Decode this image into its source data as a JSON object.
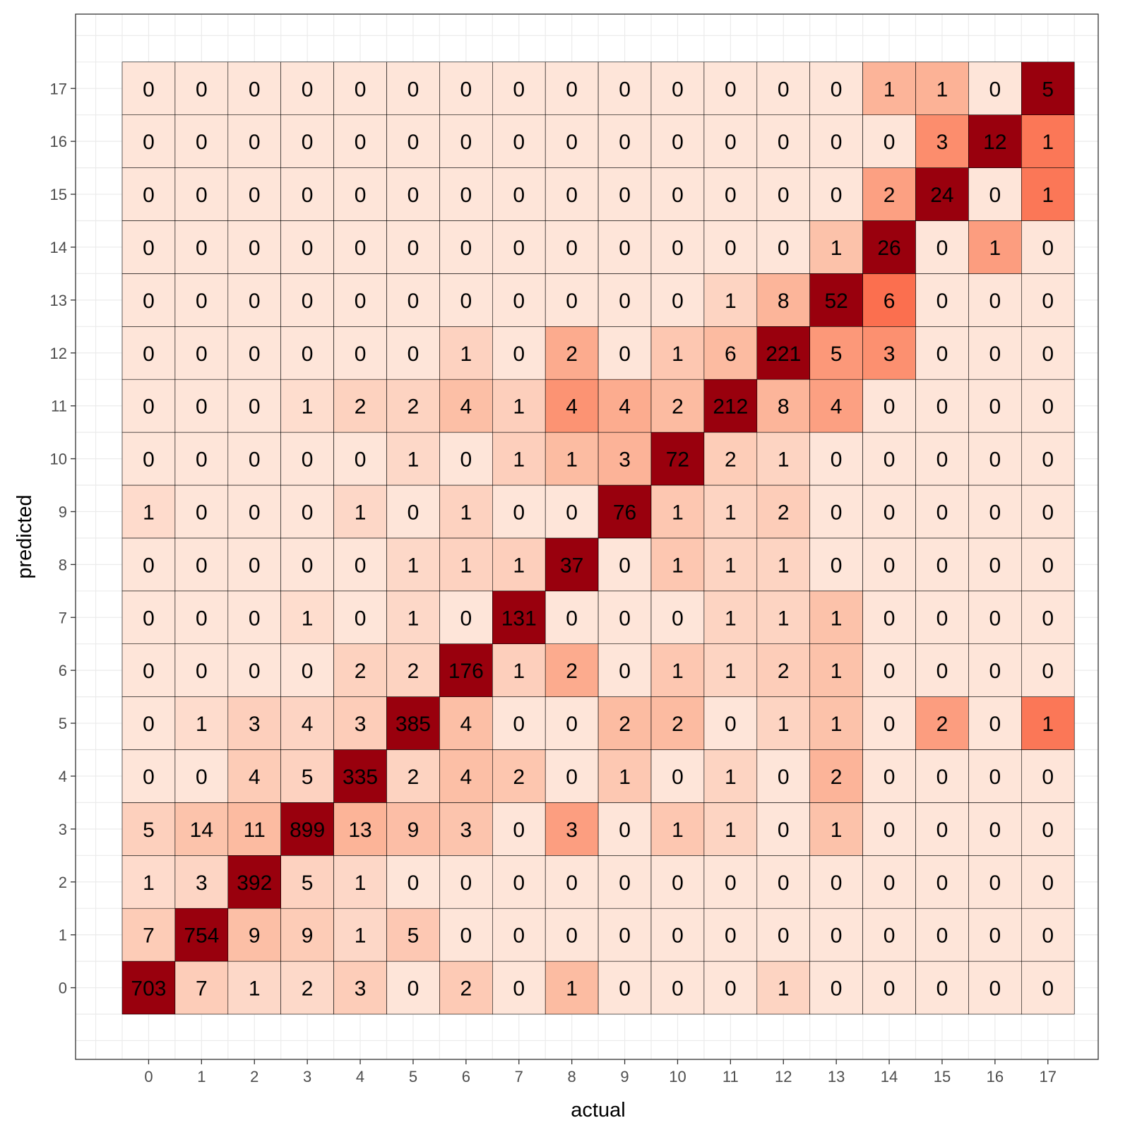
{
  "chart_data": {
    "type": "heatmap",
    "xlabel": "actual",
    "ylabel": "predicted",
    "x_categories": [
      "0",
      "1",
      "2",
      "3",
      "4",
      "5",
      "6",
      "7",
      "8",
      "9",
      "10",
      "11",
      "12",
      "13",
      "14",
      "15",
      "16",
      "17"
    ],
    "y_categories": [
      "0",
      "1",
      "2",
      "3",
      "4",
      "5",
      "6",
      "7",
      "8",
      "9",
      "10",
      "11",
      "12",
      "13",
      "14",
      "15",
      "16",
      "17"
    ],
    "rows_note": "values[i] is the row for predicted = y_categories[i]; values[i][j] is actual = x_categories[j]",
    "values": [
      [
        703,
        7,
        1,
        2,
        3,
        0,
        2,
        0,
        1,
        0,
        0,
        0,
        1,
        0,
        0,
        0,
        0,
        0
      ],
      [
        7,
        754,
        9,
        9,
        1,
        5,
        0,
        0,
        0,
        0,
        0,
        0,
        0,
        0,
        0,
        0,
        0,
        0
      ],
      [
        1,
        3,
        392,
        5,
        1,
        0,
        0,
        0,
        0,
        0,
        0,
        0,
        0,
        0,
        0,
        0,
        0,
        0
      ],
      [
        5,
        14,
        11,
        899,
        13,
        9,
        3,
        0,
        3,
        0,
        1,
        1,
        0,
        1,
        0,
        0,
        0,
        0
      ],
      [
        0,
        0,
        4,
        5,
        335,
        2,
        4,
        2,
        0,
        1,
        0,
        1,
        0,
        2,
        0,
        0,
        0,
        0
      ],
      [
        0,
        1,
        3,
        4,
        3,
        385,
        4,
        0,
        0,
        2,
        2,
        0,
        1,
        1,
        0,
        2,
        0,
        1
      ],
      [
        0,
        0,
        0,
        0,
        2,
        2,
        176,
        1,
        2,
        0,
        1,
        1,
        2,
        1,
        0,
        0,
        0,
        0
      ],
      [
        0,
        0,
        0,
        1,
        0,
        1,
        0,
        131,
        0,
        0,
        0,
        1,
        1,
        1,
        0,
        0,
        0,
        0
      ],
      [
        0,
        0,
        0,
        0,
        0,
        1,
        1,
        1,
        37,
        0,
        1,
        1,
        1,
        0,
        0,
        0,
        0,
        0
      ],
      [
        1,
        0,
        0,
        0,
        1,
        0,
        1,
        0,
        0,
        76,
        1,
        1,
        2,
        0,
        0,
        0,
        0,
        0
      ],
      [
        0,
        0,
        0,
        0,
        0,
        1,
        0,
        1,
        1,
        3,
        72,
        2,
        1,
        0,
        0,
        0,
        0,
        0
      ],
      [
        0,
        0,
        0,
        1,
        2,
        2,
        4,
        1,
        4,
        4,
        2,
        212,
        8,
        4,
        0,
        0,
        0,
        0
      ],
      [
        0,
        0,
        0,
        0,
        0,
        0,
        1,
        0,
        2,
        0,
        1,
        6,
        221,
        5,
        3,
        0,
        0,
        0
      ],
      [
        0,
        0,
        0,
        0,
        0,
        0,
        0,
        0,
        0,
        0,
        0,
        1,
        8,
        52,
        6,
        0,
        0,
        0
      ],
      [
        0,
        0,
        0,
        0,
        0,
        0,
        0,
        0,
        0,
        0,
        0,
        0,
        0,
        1,
        26,
        0,
        1,
        0
      ],
      [
        0,
        0,
        0,
        0,
        0,
        0,
        0,
        0,
        0,
        0,
        0,
        0,
        0,
        0,
        2,
        24,
        0,
        1
      ],
      [
        0,
        0,
        0,
        0,
        0,
        0,
        0,
        0,
        0,
        0,
        0,
        0,
        0,
        0,
        0,
        3,
        12,
        1
      ],
      [
        0,
        0,
        0,
        0,
        0,
        0,
        0,
        0,
        0,
        0,
        0,
        0,
        0,
        0,
        1,
        1,
        0,
        5
      ]
    ],
    "color_scale": "normalized per actual column, light (#fee5d9) to dark red (#99000d)",
    "color_stops": [
      "#fee5d9",
      "#fcbba1",
      "#fc9272",
      "#fb6a4a",
      "#ef3b2c",
      "#cb181d",
      "#99000d"
    ],
    "theme": "bw",
    "grid": true,
    "legend": "none"
  }
}
